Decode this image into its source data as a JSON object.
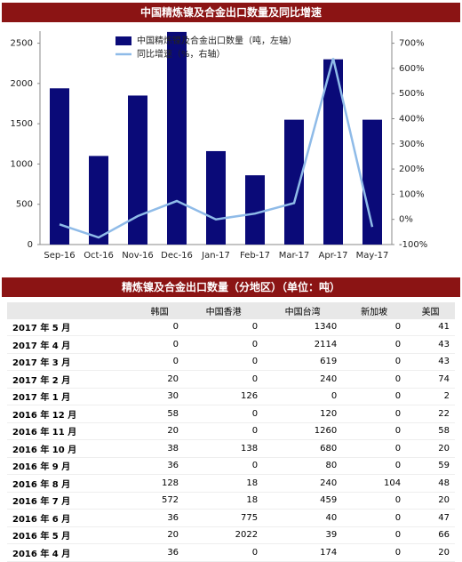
{
  "chart_data": {
    "type": "bar",
    "title": "中国精炼镍及合金出口数量及同比增速",
    "categories": [
      "Sep-16",
      "Oct-16",
      "Nov-16",
      "Dec-16",
      "Jan-17",
      "Feb-17",
      "Mar-17",
      "Apr-17",
      "May-17"
    ],
    "series": [
      {
        "name": "中国精炼镍及合金出口数量（吨，左轴）",
        "color": "#0a0a78",
        "values": [
          1940,
          1100,
          1850,
          2640,
          1160,
          860,
          1550,
          2300,
          1550
        ]
      },
      {
        "name": "同比增速（%，右轴）",
        "color": "#8fbbe8",
        "axis": "y2",
        "type": "line",
        "values": [
          -20,
          -72,
          13,
          73,
          0,
          23,
          65,
          640,
          -30
        ]
      }
    ],
    "ylim": [
      0,
      2650
    ],
    "yticks": [
      0,
      500,
      1000,
      1500,
      2000,
      2500
    ],
    "y2lim": [
      -100,
      748
    ],
    "y2ticks": [
      {
        "value": -100,
        "label": "-100%"
      },
      {
        "value": 0,
        "label": "0%"
      },
      {
        "value": 100,
        "label": "100%"
      },
      {
        "value": 200,
        "label": "200%"
      },
      {
        "value": 300,
        "label": "300%"
      },
      {
        "value": 400,
        "label": "400%"
      },
      {
        "value": 500,
        "label": "500%"
      },
      {
        "value": 600,
        "label": "600%"
      },
      {
        "value": 700,
        "label": "700%"
      }
    ],
    "legend": "top"
  },
  "table": {
    "title": "精炼镍及合金出口数量（分地区）（单位：吨）",
    "columns": [
      "韩国",
      "中国香港",
      "中国台湾",
      "新加坡",
      "美国"
    ],
    "rows": [
      {
        "label": "2017 年 5 月",
        "values": [
          0,
          0,
          1340,
          0,
          41
        ]
      },
      {
        "label": "2017 年 4 月",
        "values": [
          0,
          0,
          2114,
          0,
          43
        ]
      },
      {
        "label": "2017 年 3 月",
        "values": [
          0,
          0,
          619,
          0,
          43
        ]
      },
      {
        "label": "2017 年 2 月",
        "values": [
          20,
          0,
          240,
          0,
          74
        ]
      },
      {
        "label": "2017 年 1 月",
        "values": [
          30,
          126,
          0,
          0,
          2
        ]
      },
      {
        "label": "2016 年 12 月",
        "values": [
          58,
          0,
          120,
          0,
          22
        ]
      },
      {
        "label": "2016 年 11 月",
        "values": [
          20,
          0,
          1260,
          0,
          58
        ]
      },
      {
        "label": "2016 年 10 月",
        "values": [
          38,
          138,
          680,
          0,
          20
        ]
      },
      {
        "label": "2016 年 9 月",
        "values": [
          36,
          0,
          80,
          0,
          59
        ]
      },
      {
        "label": "2016 年 8 月",
        "values": [
          128,
          18,
          240,
          104,
          48
        ]
      },
      {
        "label": "2016 年 7 月",
        "values": [
          572,
          18,
          459,
          0,
          20
        ]
      },
      {
        "label": "2016 年 6 月",
        "values": [
          36,
          775,
          40,
          0,
          47
        ]
      },
      {
        "label": "2016 年 5 月",
        "values": [
          20,
          2022,
          39,
          0,
          66
        ]
      },
      {
        "label": "2016 年 4 月",
        "values": [
          36,
          0,
          174,
          0,
          20
        ]
      }
    ]
  }
}
